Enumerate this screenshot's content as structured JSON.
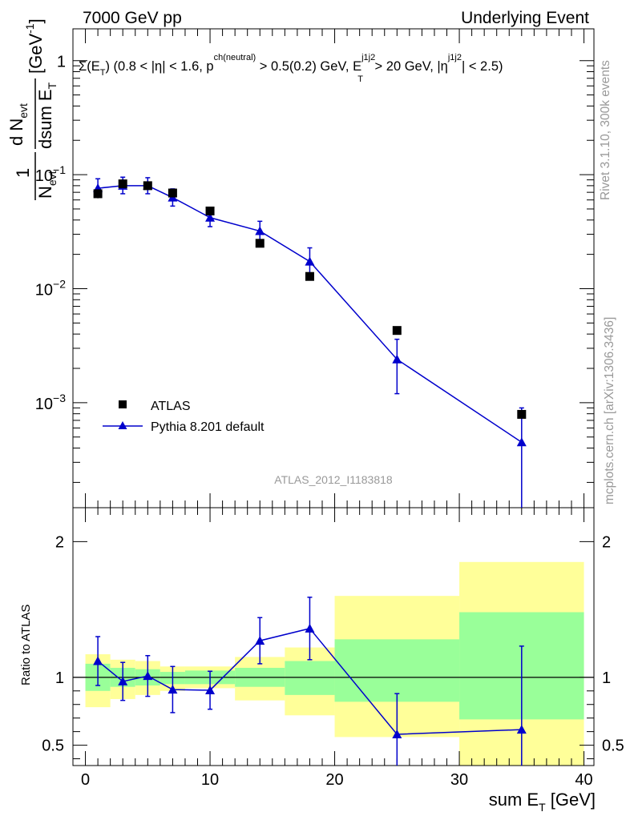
{
  "header": {
    "left": "7000 GeV pp",
    "right": "Underlying Event"
  },
  "side": {
    "rivet": "Rivet 3.1.10,  300k events",
    "mcplots": "mcplots.cern.ch [arXiv:1306.3436]"
  },
  "watermark": "ATLAS_2012_I1183818",
  "colors": {
    "mc": "#0000cc",
    "data": "#000000",
    "band_inner": "#99ff99",
    "band_outer": "#ffff99"
  },
  "chart_data": [
    {
      "type": "scatter",
      "panel": "main",
      "title": "Σ(E_T) (0.8 < |η| < 1.6, p^ch(neutral) > 0.5(0.2) GeV, E_T^j1j2 > 20 GeV, |η^j1j2| < 2.5)",
      "title_parts": {
        "p1": "Σ(E",
        "p1sub": "T",
        "p2": ") (0.8 < |η| < 1.6, p",
        "p2sup": "ch(neutral)",
        "p3": " > 0.5(0.2) GeV, E",
        "p3sup": "j1j2",
        "p3sub": "T",
        "p4": " > 20 GeV, |η",
        "p4sup": "j1j2",
        "p5": "| < 2.5)"
      },
      "ylabel": "1/N_evt dN_evt/dsum E_T [GeV^-1]",
      "ylabel_parts": {
        "one": "1",
        "N": "N",
        "Nsub": "evt",
        "d": "d N",
        "dsub": "evt",
        "dsum": "dsum E",
        "dsumsub": "T",
        "unit": "[GeV",
        "unitsup": "-1",
        "unitclose": "]"
      },
      "y_scale": "log",
      "xlim": [
        -1,
        40.8
      ],
      "ylim": [
        0.00012,
        1.9
      ],
      "y_ticks": [
        {
          "v": 1,
          "label": "1",
          "sup": ""
        },
        {
          "v": 0.1,
          "label": "10",
          "sup": "−1"
        },
        {
          "v": 0.01,
          "label": "10",
          "sup": "−2"
        },
        {
          "v": 0.001,
          "label": "10",
          "sup": "−3"
        }
      ],
      "legend_position": "lower-left",
      "series": [
        {
          "name": "ATLAS",
          "marker": "square",
          "x": [
            1,
            3,
            5,
            7,
            10,
            14,
            18,
            25,
            35
          ],
          "y": [
            0.068,
            0.083,
            0.08,
            0.069,
            0.048,
            0.025,
            0.0128,
            0.0043,
            0.00079
          ],
          "yerr_low": [
            0.006,
            0.005,
            0.005,
            0.004,
            0.003,
            0.0018,
            0.001,
            0.0003,
            6e-05
          ],
          "yerr_high": [
            0.006,
            0.005,
            0.005,
            0.004,
            0.003,
            0.0018,
            0.001,
            0.0003,
            6e-05
          ]
        },
        {
          "name": "Pythia 8.201 default",
          "marker": "triangle",
          "x": [
            1,
            3,
            5,
            7,
            10,
            14,
            18,
            25,
            35
          ],
          "y": [
            0.076,
            0.08,
            0.08,
            0.063,
            0.042,
            0.032,
            0.0173,
            0.0024,
            0.00045
          ],
          "yerr_low": [
            0.012,
            0.012,
            0.012,
            0.01,
            0.007,
            0.006,
            0.004,
            0.0012,
            0.00045
          ],
          "yerr_high": [
            0.016,
            0.015,
            0.014,
            0.012,
            0.008,
            0.007,
            0.0055,
            0.0012,
            0.00045
          ]
        }
      ]
    },
    {
      "type": "scatter",
      "panel": "ratio",
      "xlabel": "sum E_T [GeV]",
      "xlabel_parts": {
        "main": "sum E",
        "sub": "T",
        "rest": " [GeV]"
      },
      "ylabel": "Ratio to ATLAS",
      "xlim": [
        -1,
        40.8
      ],
      "ylim": [
        0.35,
        2.25
      ],
      "x_ticks": [
        0,
        10,
        20,
        30,
        40
      ],
      "y_ticks": [
        0.5,
        1,
        2
      ],
      "reference_line": 1,
      "bands": [
        {
          "x0": 0,
          "x1": 2,
          "outer": [
            0.78,
            1.17
          ],
          "inner": [
            0.9,
            1.1
          ]
        },
        {
          "x0": 2,
          "x1": 4,
          "outer": [
            0.84,
            1.13
          ],
          "inner": [
            0.93,
            1.07
          ]
        },
        {
          "x0": 4,
          "x1": 6,
          "outer": [
            0.87,
            1.12
          ],
          "inner": [
            0.94,
            1.06
          ]
        },
        {
          "x0": 6,
          "x1": 8,
          "outer": [
            0.9,
            1.08
          ],
          "inner": [
            0.95,
            1.04
          ]
        },
        {
          "x0": 8,
          "x1": 12,
          "outer": [
            0.92,
            1.08
          ],
          "inner": [
            0.95,
            1.05
          ]
        },
        {
          "x0": 12,
          "x1": 16,
          "outer": [
            0.83,
            1.15
          ],
          "inner": [
            0.93,
            1.07
          ]
        },
        {
          "x0": 16,
          "x1": 20,
          "outer": [
            0.72,
            1.22
          ],
          "inner": [
            0.87,
            1.12
          ]
        },
        {
          "x0": 20,
          "x1": 30,
          "outer": [
            0.56,
            1.6
          ],
          "inner": [
            0.82,
            1.28
          ]
        },
        {
          "x0": 30,
          "x1": 40,
          "outer": [
            0.35,
            1.85
          ],
          "inner": [
            0.69,
            1.48
          ]
        }
      ],
      "series": [
        {
          "name": "Pythia 8.201 default",
          "marker": "triangle",
          "x": [
            1,
            3,
            5,
            7,
            10,
            14,
            18,
            25,
            35
          ],
          "y": [
            1.12,
            0.97,
            1.01,
            0.91,
            0.905,
            1.27,
            1.36,
            0.58,
            0.615
          ],
          "yerr_low": [
            0.18,
            0.14,
            0.15,
            0.17,
            0.14,
            0.17,
            0.23,
            0.3,
            0.615
          ],
          "yerr_high": [
            0.18,
            0.14,
            0.15,
            0.17,
            0.14,
            0.17,
            0.23,
            0.3,
            0.615
          ]
        }
      ]
    }
  ]
}
